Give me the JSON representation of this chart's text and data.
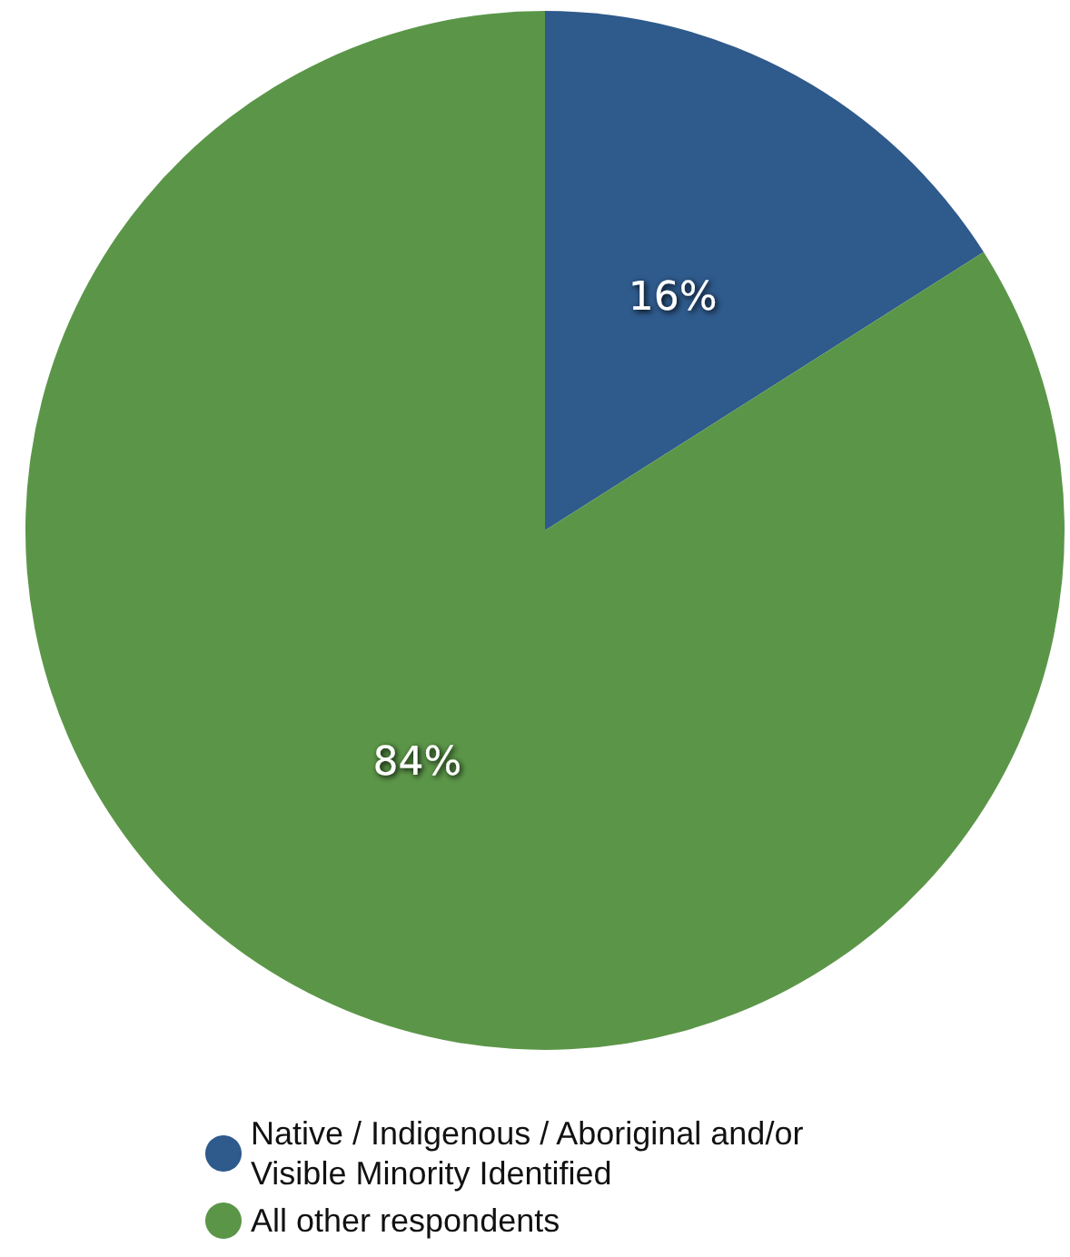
{
  "chart_data": {
    "type": "pie",
    "categories": [
      "Native / Indigenous / Aboriginal and/or Visible Minority Identified",
      "All other respondents"
    ],
    "values": [
      16,
      84
    ],
    "colors": [
      "#2e5a8c",
      "#5b9648"
    ],
    "value_labels": [
      "16%",
      "84%"
    ],
    "legend": "bottom"
  }
}
